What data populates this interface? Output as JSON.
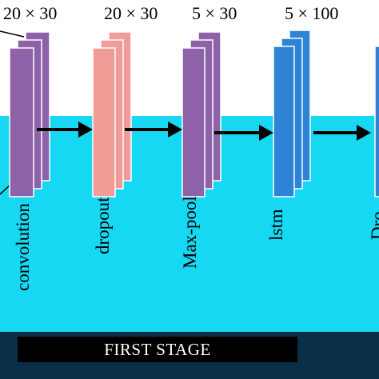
{
  "layers": [
    {
      "dims": "20 × 30",
      "label": "convolution",
      "color": "#8e62a8",
      "edge_color": "#7a4f97"
    },
    {
      "dims": "20 × 30",
      "label": "dropout",
      "color": "#f19c97",
      "edge_color": "#e07f7a"
    },
    {
      "dims": "5 × 30",
      "label": "Max-pool",
      "color": "#8e62a8",
      "edge_color": "#7a4f97"
    },
    {
      "dims": "5 × 100",
      "label": "lstm",
      "color": "#2f83d4",
      "edge_color": "#1f6cb8"
    },
    {
      "dims": "",
      "label": "Dro",
      "color": "#2f83d4",
      "edge_color": "#1f6cb8"
    }
  ],
  "stage_label": "FIRST STAGE",
  "colors": {
    "background": "#16d8f2",
    "arrow": "#000000",
    "stage_bar": "#000000",
    "band": "#0a2f48"
  }
}
